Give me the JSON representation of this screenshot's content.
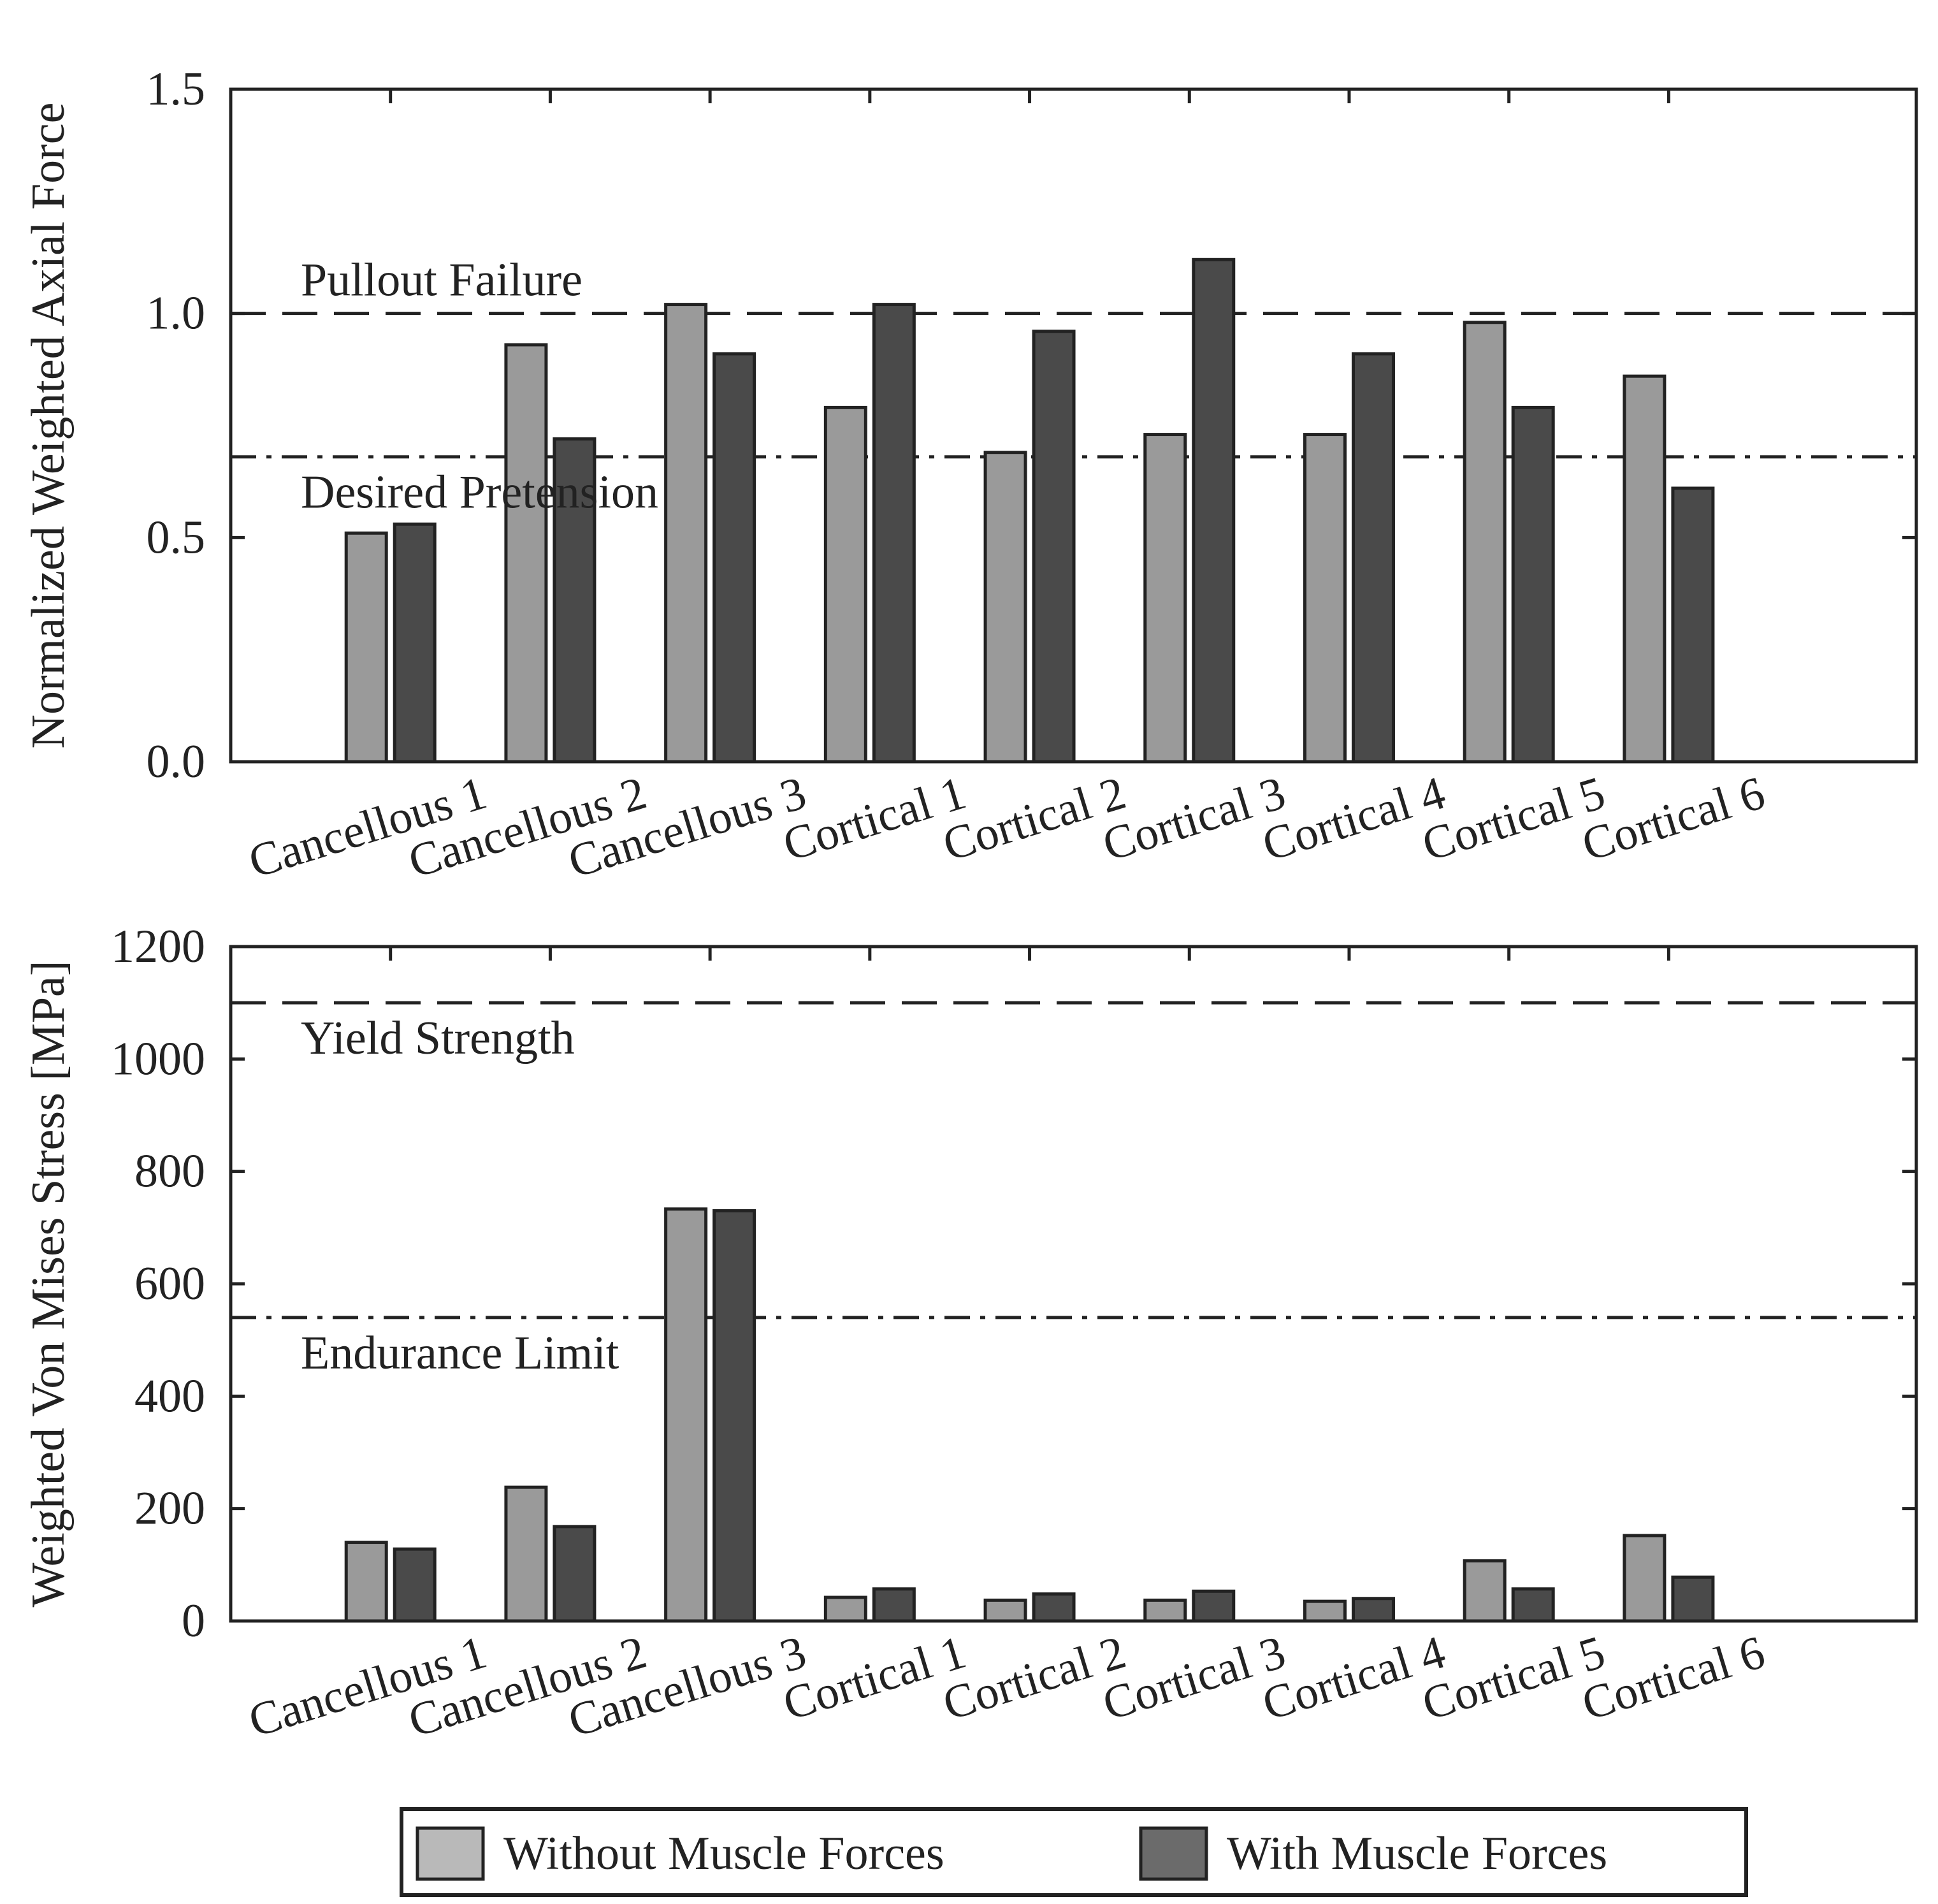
{
  "legend": {
    "items": [
      {
        "label": "Without Muscle Forces",
        "color": "#b9b9b9"
      },
      {
        "label": "With Muscle Forces",
        "color": "#6b6b6b"
      }
    ]
  },
  "chart_data": [
    {
      "type": "bar",
      "title": "",
      "xlabel": "",
      "ylabel": "Normalized Weighted Axial Force",
      "ylim": [
        0,
        1.5
      ],
      "yticks": [
        "0.0",
        "0.5",
        "1.0",
        "1.5"
      ],
      "categories": [
        "Cancellous 1",
        "Cancellous 2",
        "Cancellous 3",
        "Cortical 1",
        "Cortical 2",
        "Cortical 3",
        "Cortical 4",
        "Cortical 5",
        "Cortical 6"
      ],
      "series": [
        {
          "name": "Without Muscle Forces",
          "color": "#9a9a9a",
          "values": [
            0.51,
            0.93,
            1.02,
            0.79,
            0.69,
            0.73,
            0.73,
            0.98,
            0.86
          ]
        },
        {
          "name": "With Muscle Forces",
          "color": "#4a4a4a",
          "values": [
            0.53,
            0.72,
            0.91,
            1.02,
            0.96,
            1.12,
            0.91,
            0.79,
            0.61
          ]
        }
      ],
      "reference_lines": [
        {
          "label": "Pullout Failure",
          "value": 1.0,
          "style": "dashed"
        },
        {
          "label": "Desired Pretension",
          "value": 0.68,
          "style": "dashdot"
        }
      ],
      "grid": false
    },
    {
      "type": "bar",
      "title": "",
      "xlabel": "",
      "ylabel": "Weighted Von Mises Stress [MPa]",
      "ylim": [
        0,
        1200
      ],
      "yticks": [
        "0",
        "200",
        "400",
        "600",
        "800",
        "1000",
        "1200"
      ],
      "categories": [
        "Cancellous 1",
        "Cancellous 2",
        "Cancellous 3",
        "Cortical 1",
        "Cortical 2",
        "Cortical 3",
        "Cortical 4",
        "Cortical 5",
        "Cortical 6"
      ],
      "series": [
        {
          "name": "Without Muscle Forces",
          "color": "#9a9a9a",
          "values": [
            140,
            238,
            733,
            42,
            37,
            37,
            35,
            107,
            152
          ]
        },
        {
          "name": "With Muscle Forces",
          "color": "#4a4a4a",
          "values": [
            128,
            168,
            730,
            57,
            48,
            53,
            40,
            57,
            78
          ]
        }
      ],
      "reference_lines": [
        {
          "label": "Yield Strength",
          "value": 1100,
          "style": "dashed"
        },
        {
          "label": "Endurance Limit",
          "value": 540,
          "style": "dashdot"
        }
      ],
      "grid": false
    }
  ]
}
